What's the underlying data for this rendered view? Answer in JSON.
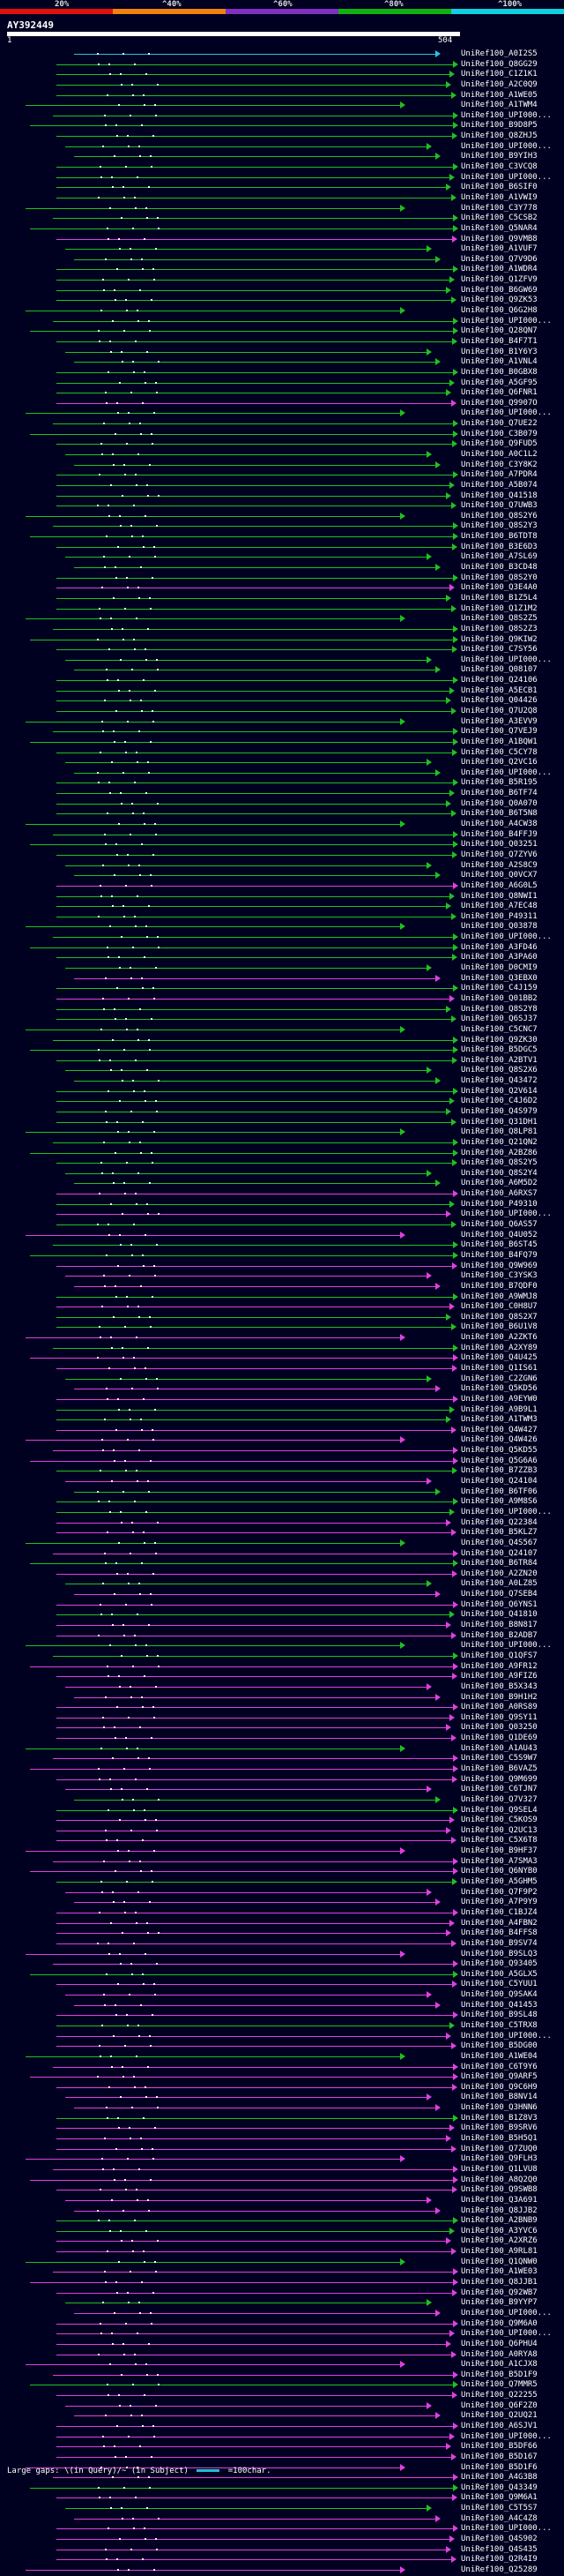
{
  "legend": {
    "percent_labels": [
      "20%",
      "^40%",
      "^60%",
      "^80%",
      "^100%"
    ],
    "colors": [
      "#e01010",
      "#f08010",
      "#8030c0",
      "#10b010",
      "#10d0e0"
    ]
  },
  "query": {
    "id": "AY392449",
    "start": "1",
    "end": "504"
  },
  "footer": {
    "gap_label": "Large gaps: \\(in Query)/~ (in Subject)",
    "scale_label": "=100char."
  },
  "colors": {
    "green": "#20c020",
    "magenta": "#e040e0",
    "cyan": "#30c0e0"
  },
  "hits": [
    {
      "label": "UniRef100_A0I2S5",
      "color": "cyan"
    },
    {
      "label": "UniRef100_Q8GG29",
      "color": "green"
    },
    {
      "label": "UniRef100_C1Z1K1",
      "color": "green"
    },
    {
      "label": "UniRef100_A2C0Q9",
      "color": "green"
    },
    {
      "label": "UniRef100_A1WE05",
      "color": "green"
    },
    {
      "label": "UniRef100_A1TWM4",
      "color": "green"
    },
    {
      "label": "UniRef100_UPI000...",
      "color": "green"
    },
    {
      "label": "UniRef100_B9D8P5",
      "color": "green"
    },
    {
      "label": "UniRef100_Q8ZHJ5",
      "color": "green"
    },
    {
      "label": "UniRef100_UPI000...",
      "color": "green"
    },
    {
      "label": "UniRef100_B9YIH3",
      "color": "green"
    },
    {
      "label": "UniRef100_C3VCQ8",
      "color": "green"
    },
    {
      "label": "UniRef100_UPI000...",
      "color": "green"
    },
    {
      "label": "UniRef100_B6SIF0",
      "color": "green"
    },
    {
      "label": "UniRef100_A1VWI9",
      "color": "green"
    },
    {
      "label": "UniRef100_C3Y778",
      "color": "green"
    },
    {
      "label": "UniRef100_C5CSB2",
      "color": "green"
    },
    {
      "label": "UniRef100_Q5NAR4",
      "color": "green"
    },
    {
      "label": "UniRef100_Q9VMB8",
      "color": "magenta"
    },
    {
      "label": "UniRef100_A1VUF7",
      "color": "green"
    },
    {
      "label": "UniRef100_Q7V9D6",
      "color": "green"
    },
    {
      "label": "UniRef100_A1WDR4",
      "color": "green"
    },
    {
      "label": "UniRef100_Q1ZFV9",
      "color": "green"
    },
    {
      "label": "UniRef100_B6GW69",
      "color": "green"
    },
    {
      "label": "UniRef100_Q9ZK53",
      "color": "green"
    },
    {
      "label": "UniRef100_Q6G2H8",
      "color": "green"
    },
    {
      "label": "UniRef100_UPI000...",
      "color": "green"
    },
    {
      "label": "UniRef100_Q28QN7",
      "color": "green"
    },
    {
      "label": "UniRef100_B4F7T1",
      "color": "green"
    },
    {
      "label": "UniRef100_B1Y6Y3",
      "color": "green"
    },
    {
      "label": "UniRef100_A1VNL4",
      "color": "green"
    },
    {
      "label": "UniRef100_B0GBX8",
      "color": "green"
    },
    {
      "label": "UniRef100_A5GF95",
      "color": "green"
    },
    {
      "label": "UniRef100_Q6FNR1",
      "color": "green"
    },
    {
      "label": "UniRef100_Q9907O",
      "color": "magenta"
    },
    {
      "label": "UniRef100_UPI000...",
      "color": "green"
    },
    {
      "label": "UniRef100_Q7UE22",
      "color": "green"
    },
    {
      "label": "UniRef100_C3B079",
      "color": "green"
    },
    {
      "label": "UniRef100_Q9FUD5",
      "color": "green"
    },
    {
      "label": "UniRef100_A0C1L2",
      "color": "green"
    },
    {
      "label": "UniRef100_C3Y8K2",
      "color": "green"
    },
    {
      "label": "UniRef100_A7PDR4",
      "color": "green"
    },
    {
      "label": "UniRef100_A5B074",
      "color": "green"
    },
    {
      "label": "UniRef100_Q41518",
      "color": "green"
    },
    {
      "label": "UniRef100_Q7UWB3",
      "color": "green"
    },
    {
      "label": "UniRef100_Q8S2Y6",
      "color": "green"
    },
    {
      "label": "UniRef100_Q8S2Y3",
      "color": "green"
    },
    {
      "label": "UniRef100_B6TDT8",
      "color": "green"
    },
    {
      "label": "UniRef100_B3E6D3",
      "color": "green"
    },
    {
      "label": "UniRef100_A7SL69",
      "color": "green"
    },
    {
      "label": "UniRef100_B3CD48",
      "color": "green"
    },
    {
      "label": "UniRef100_Q8S2Y0",
      "color": "green"
    },
    {
      "label": "UniRef100_Q3E4A0",
      "color": "magenta"
    },
    {
      "label": "UniRef100_B1Z5L4",
      "color": "green"
    },
    {
      "label": "UniRef100_Q1Z1M2",
      "color": "green"
    },
    {
      "label": "UniRef100_Q8S2Z5",
      "color": "green"
    },
    {
      "label": "UniRef100_Q8S2Z3",
      "color": "green"
    },
    {
      "label": "UniRef100_Q9KIW2",
      "color": "green"
    },
    {
      "label": "UniRef100_C7SY56",
      "color": "green"
    },
    {
      "label": "UniRef100_UPI000...",
      "color": "green"
    },
    {
      "label": "UniRef100_Q08107",
      "color": "green"
    },
    {
      "label": "UniRef100_Q24106",
      "color": "green"
    },
    {
      "label": "UniRef100_A5ECB1",
      "color": "green"
    },
    {
      "label": "UniRef100_Q04426",
      "color": "green"
    },
    {
      "label": "UniRef100_Q7U2Q8",
      "color": "green"
    },
    {
      "label": "UniRef100_A3EVV9",
      "color": "green"
    },
    {
      "label": "UniRef100_Q7VEJ9",
      "color": "green"
    },
    {
      "label": "UniRef100_A1BQW1",
      "color": "green"
    },
    {
      "label": "UniRef100_C5CY78",
      "color": "green"
    },
    {
      "label": "UniRef100_Q2VC16",
      "color": "green"
    },
    {
      "label": "UniRef100_UPI000...",
      "color": "green"
    },
    {
      "label": "UniRef100_B5R195",
      "color": "green"
    },
    {
      "label": "UniRef100_B6TF74",
      "color": "green"
    },
    {
      "label": "UniRef100_Q0A070",
      "color": "green"
    },
    {
      "label": "UniRef100_B6T5N8",
      "color": "green"
    },
    {
      "label": "UniRef100_A4CW38",
      "color": "green"
    },
    {
      "label": "UniRef100_B4FFJ9",
      "color": "green"
    },
    {
      "label": "UniRef100_Q03251",
      "color": "green"
    },
    {
      "label": "UniRef100_Q7ZYV6",
      "color": "green"
    },
    {
      "label": "UniRef100_A2S8C9",
      "color": "green"
    },
    {
      "label": "UniRef100_Q0VCX7",
      "color": "green"
    },
    {
      "label": "UniRef100_A6G0L5",
      "color": "magenta"
    },
    {
      "label": "UniRef100_Q8NWI1",
      "color": "green"
    },
    {
      "label": "UniRef100_A7EC48",
      "color": "green"
    },
    {
      "label": "UniRef100_P49311",
      "color": "green"
    },
    {
      "label": "UniRef100_Q03878",
      "color": "green"
    },
    {
      "label": "UniRef100_UPI000...",
      "color": "green"
    },
    {
      "label": "UniRef100_A3FD46",
      "color": "green"
    },
    {
      "label": "UniRef100_A3PA60",
      "color": "green"
    },
    {
      "label": "UniRef100_D0CMI9",
      "color": "green"
    },
    {
      "label": "UniRef100_Q3EBX0",
      "color": "magenta"
    },
    {
      "label": "UniRef100_C4J159",
      "color": "green"
    },
    {
      "label": "UniRef100_Q01BB2",
      "color": "magenta"
    },
    {
      "label": "UniRef100_Q8S2Y8",
      "color": "green"
    },
    {
      "label": "UniRef100_Q6SJ37",
      "color": "green"
    },
    {
      "label": "UniRef100_C5CNC7",
      "color": "green"
    },
    {
      "label": "UniRef100_Q9ZK30",
      "color": "green"
    },
    {
      "label": "UniRef100_B5DGC5",
      "color": "green"
    },
    {
      "label": "UniRef100_A2BTV1",
      "color": "green"
    },
    {
      "label": "UniRef100_Q8S2X6",
      "color": "green"
    },
    {
      "label": "UniRef100_Q43472",
      "color": "green"
    },
    {
      "label": "UniRef100_Q2V614",
      "color": "green"
    },
    {
      "label": "UniRef100_C4J6D2",
      "color": "green"
    },
    {
      "label": "UniRef100_Q4S979",
      "color": "green"
    },
    {
      "label": "UniRef100_Q31DH1",
      "color": "green"
    },
    {
      "label": "UniRef100_Q8LP81",
      "color": "green"
    },
    {
      "label": "UniRef100_Q21QN2",
      "color": "green"
    },
    {
      "label": "UniRef100_A2BZ86",
      "color": "green"
    },
    {
      "label": "UniRef100_Q8S2Y5",
      "color": "green"
    },
    {
      "label": "UniRef100_Q8S2Y4",
      "color": "green"
    },
    {
      "label": "UniRef100_A6M5D2",
      "color": "green"
    },
    {
      "label": "UniRef100_A6RXS7",
      "color": "magenta"
    },
    {
      "label": "UniRef100_P49310",
      "color": "green"
    },
    {
      "label": "UniRef100_UPI000...",
      "color": "magenta"
    },
    {
      "label": "UniRef100_Q6AS57",
      "color": "green"
    },
    {
      "label": "UniRef100_Q4U052",
      "color": "magenta"
    },
    {
      "label": "UniRef100_B6ST45",
      "color": "green"
    },
    {
      "label": "UniRef100_B4FQ79",
      "color": "green"
    },
    {
      "label": "UniRef100_Q9W969",
      "color": "magenta"
    },
    {
      "label": "UniRef100_C3YSK3",
      "color": "magenta"
    },
    {
      "label": "UniRef100_B7QDF0",
      "color": "magenta"
    },
    {
      "label": "UniRef100_A9WMJ8",
      "color": "green"
    },
    {
      "label": "UniRef100_C0H8U7",
      "color": "magenta"
    },
    {
      "label": "UniRef100_Q8S2X7",
      "color": "green"
    },
    {
      "label": "UniRef100_B6U1V8",
      "color": "green"
    },
    {
      "label": "UniRef100_A2ZKT6",
      "color": "magenta"
    },
    {
      "label": "UniRef100_A2XY89",
      "color": "green"
    },
    {
      "label": "UniRef100_Q4U425",
      "color": "magenta"
    },
    {
      "label": "UniRef100_Q1IS61",
      "color": "magenta"
    },
    {
      "label": "UniRef100_C2ZGN6",
      "color": "green"
    },
    {
      "label": "UniRef100_Q5KD56",
      "color": "magenta"
    },
    {
      "label": "UniRef100_A9EYW0",
      "color": "magenta"
    },
    {
      "label": "UniRef100_A9B9L1",
      "color": "green"
    },
    {
      "label": "UniRef100_A1TWM3",
      "color": "green"
    },
    {
      "label": "UniRef100_Q4W427",
      "color": "magenta"
    },
    {
      "label": "UniRef100_Q4W426",
      "color": "magenta"
    },
    {
      "label": "UniRef100_Q5KD55",
      "color": "magenta"
    },
    {
      "label": "UniRef100_Q5G6A6",
      "color": "magenta"
    },
    {
      "label": "UniRef100_B7ZZB3",
      "color": "green"
    },
    {
      "label": "UniRef100_Q24104",
      "color": "magenta"
    },
    {
      "label": "UniRef100_B6TF06",
      "color": "green"
    },
    {
      "label": "UniRef100_A9M8S6",
      "color": "green"
    },
    {
      "label": "UniRef100_UPI000...",
      "color": "green"
    },
    {
      "label": "UniRef100_Q22384",
      "color": "magenta"
    },
    {
      "label": "UniRef100_B5KLZ7",
      "color": "magenta"
    },
    {
      "label": "UniRef100_Q4S567",
      "color": "green"
    },
    {
      "label": "UniRef100_Q24107",
      "color": "magenta"
    },
    {
      "label": "UniRef100_B6TR84",
      "color": "green"
    },
    {
      "label": "UniRef100_A2ZN20",
      "color": "magenta"
    },
    {
      "label": "UniRef100_A0LZ85",
      "color": "green"
    },
    {
      "label": "UniRef100_Q7SEB4",
      "color": "magenta"
    },
    {
      "label": "UniRef100_Q6YNS1",
      "color": "magenta"
    },
    {
      "label": "UniRef100_Q41810",
      "color": "green"
    },
    {
      "label": "UniRef100_B8N817",
      "color": "magenta"
    },
    {
      "label": "UniRef100_B2ADB7",
      "color": "magenta"
    },
    {
      "label": "UniRef100_UPI000...",
      "color": "green"
    },
    {
      "label": "UniRef100_Q1QFS7",
      "color": "green"
    },
    {
      "label": "UniRef100_A9FR12",
      "color": "magenta"
    },
    {
      "label": "UniRef100_A9FIZ6",
      "color": "magenta"
    },
    {
      "label": "UniRef100_B5X343",
      "color": "magenta"
    },
    {
      "label": "UniRef100_B9H1H2",
      "color": "magenta"
    },
    {
      "label": "UniRef100_A0RS89",
      "color": "magenta"
    },
    {
      "label": "UniRef100_Q9SY11",
      "color": "magenta"
    },
    {
      "label": "UniRef100_Q03250",
      "color": "magenta"
    },
    {
      "label": "UniRef100_Q1DE69",
      "color": "magenta"
    },
    {
      "label": "UniRef100_A1AU43",
      "color": "green"
    },
    {
      "label": "UniRef100_C5S9W7",
      "color": "magenta"
    },
    {
      "label": "UniRef100_B6VAZ5",
      "color": "magenta"
    },
    {
      "label": "UniRef100_Q9M699",
      "color": "magenta"
    },
    {
      "label": "UniRef100_C6TJN7",
      "color": "magenta"
    },
    {
      "label": "UniRef100_Q7V327",
      "color": "green"
    },
    {
      "label": "UniRef100_Q9SEL4",
      "color": "green"
    },
    {
      "label": "UniRef100_C5KOS9",
      "color": "magenta"
    },
    {
      "label": "UniRef100_Q2UC13",
      "color": "magenta"
    },
    {
      "label": "UniRef100_C5X6T8",
      "color": "magenta"
    },
    {
      "label": "UniRef100_B9HF37",
      "color": "magenta"
    },
    {
      "label": "UniRef100_A7SMA3",
      "color": "magenta"
    },
    {
      "label": "UniRef100_Q6NYB0",
      "color": "magenta"
    },
    {
      "label": "UniRef100_A5GHM5",
      "color": "green"
    },
    {
      "label": "UniRef100_Q7F9P2",
      "color": "magenta"
    },
    {
      "label": "UniRef100_A7P9Y9",
      "color": "magenta"
    },
    {
      "label": "UniRef100_C1BJZ4",
      "color": "magenta"
    },
    {
      "label": "UniRef100_A4FBN2",
      "color": "magenta"
    },
    {
      "label": "UniRef100_B4FFS8",
      "color": "magenta"
    },
    {
      "label": "UniRef100_B9SV74",
      "color": "magenta"
    },
    {
      "label": "UniRef100_B9SLQ3",
      "color": "magenta"
    },
    {
      "label": "UniRef100_Q93405",
      "color": "magenta"
    },
    {
      "label": "UniRef100_A5GLX5",
      "color": "green"
    },
    {
      "label": "UniRef100_C5YUU1",
      "color": "magenta"
    },
    {
      "label": "UniRef100_Q9SAK4",
      "color": "magenta"
    },
    {
      "label": "UniRef100_Q41453",
      "color": "magenta"
    },
    {
      "label": "UniRef100_B9SL48",
      "color": "magenta"
    },
    {
      "label": "UniRef100_C5TRX8",
      "color": "green"
    },
    {
      "label": "UniRef100_UPI000...",
      "color": "magenta"
    },
    {
      "label": "UniRef100_B5DG00",
      "color": "magenta"
    },
    {
      "label": "UniRef100_A1WE04",
      "color": "green"
    },
    {
      "label": "UniRef100_C6T9Y6",
      "color": "magenta"
    },
    {
      "label": "UniRef100_Q9ARF5",
      "color": "magenta"
    },
    {
      "label": "UniRef100_Q9C6H9",
      "color": "magenta"
    },
    {
      "label": "UniRef100_B8NV14",
      "color": "magenta"
    },
    {
      "label": "UniRef100_Q3HNN6",
      "color": "magenta"
    },
    {
      "label": "UniRef100_B1Z8V3",
      "color": "green"
    },
    {
      "label": "UniRef100_B9SRV6",
      "color": "magenta"
    },
    {
      "label": "UniRef100_B5H5Q1",
      "color": "magenta"
    },
    {
      "label": "UniRef100_Q7ZUQ0",
      "color": "magenta"
    },
    {
      "label": "UniRef100_Q9FLH3",
      "color": "magenta"
    },
    {
      "label": "UniRef100_Q1LVU8",
      "color": "magenta"
    },
    {
      "label": "UniRef100_A8Q2Q0",
      "color": "magenta"
    },
    {
      "label": "UniRef100_Q9SWB8",
      "color": "magenta"
    },
    {
      "label": "UniRef100_Q3A691",
      "color": "magenta"
    },
    {
      "label": "UniRef100_Q8JJB2",
      "color": "magenta"
    },
    {
      "label": "UniRef100_A2BNB9",
      "color": "green"
    },
    {
      "label": "UniRef100_A3YVC6",
      "color": "green"
    },
    {
      "label": "UniRef100_A2XRZ6",
      "color": "magenta"
    },
    {
      "label": "UniRef100_A9RL81",
      "color": "magenta"
    },
    {
      "label": "UniRef100_Q1QNW0",
      "color": "green"
    },
    {
      "label": "UniRef100_A1WE03",
      "color": "magenta"
    },
    {
      "label": "UniRef100_Q8JJB1",
      "color": "magenta"
    },
    {
      "label": "UniRef100_Q92WB7",
      "color": "magenta"
    },
    {
      "label": "UniRef100_B9YYP7",
      "color": "green"
    },
    {
      "label": "UniRef100_UPI000...",
      "color": "magenta"
    },
    {
      "label": "UniRef100_Q9M6A0",
      "color": "magenta"
    },
    {
      "label": "UniRef100_UPI000...",
      "color": "magenta"
    },
    {
      "label": "UniRef100_Q6PHU4",
      "color": "magenta"
    },
    {
      "label": "UniRef100_A0RYA8",
      "color": "magenta"
    },
    {
      "label": "UniRef100_A1CJX8",
      "color": "magenta"
    },
    {
      "label": "UniRef100_B5D1F9",
      "color": "magenta"
    },
    {
      "label": "UniRef100_Q7MMR5",
      "color": "green"
    },
    {
      "label": "UniRef100_Q22255",
      "color": "magenta"
    },
    {
      "label": "UniRef100_Q6F2Z0",
      "color": "magenta"
    },
    {
      "label": "UniRef100_Q2UQ21",
      "color": "magenta"
    },
    {
      "label": "UniRef100_A6SJV1",
      "color": "magenta"
    },
    {
      "label": "UniRef100_UPI000...",
      "color": "magenta"
    },
    {
      "label": "UniRef100_B5DF66",
      "color": "magenta"
    },
    {
      "label": "UniRef100_B5D167",
      "color": "magenta"
    },
    {
      "label": "UniRef100_B5D1F6",
      "color": "magenta"
    },
    {
      "label": "UniRef100_A4G3B8",
      "color": "magenta"
    },
    {
      "label": "UniRef100_Q43349",
      "color": "green"
    },
    {
      "label": "UniRef100_Q9M6A1",
      "color": "magenta"
    },
    {
      "label": "UniRef100_C5T5S7",
      "color": "green"
    },
    {
      "label": "UniRef100_A4C4Z8",
      "color": "magenta"
    },
    {
      "label": "UniRef100_UPI000...",
      "color": "magenta"
    },
    {
      "label": "UniRef100_Q4S902",
      "color": "magenta"
    },
    {
      "label": "UniRef100_Q4S435",
      "color": "magenta"
    },
    {
      "label": "UniRef100_Q2R4I9",
      "color": "magenta"
    },
    {
      "label": "UniRef100_Q25289",
      "color": "magenta"
    }
  ]
}
